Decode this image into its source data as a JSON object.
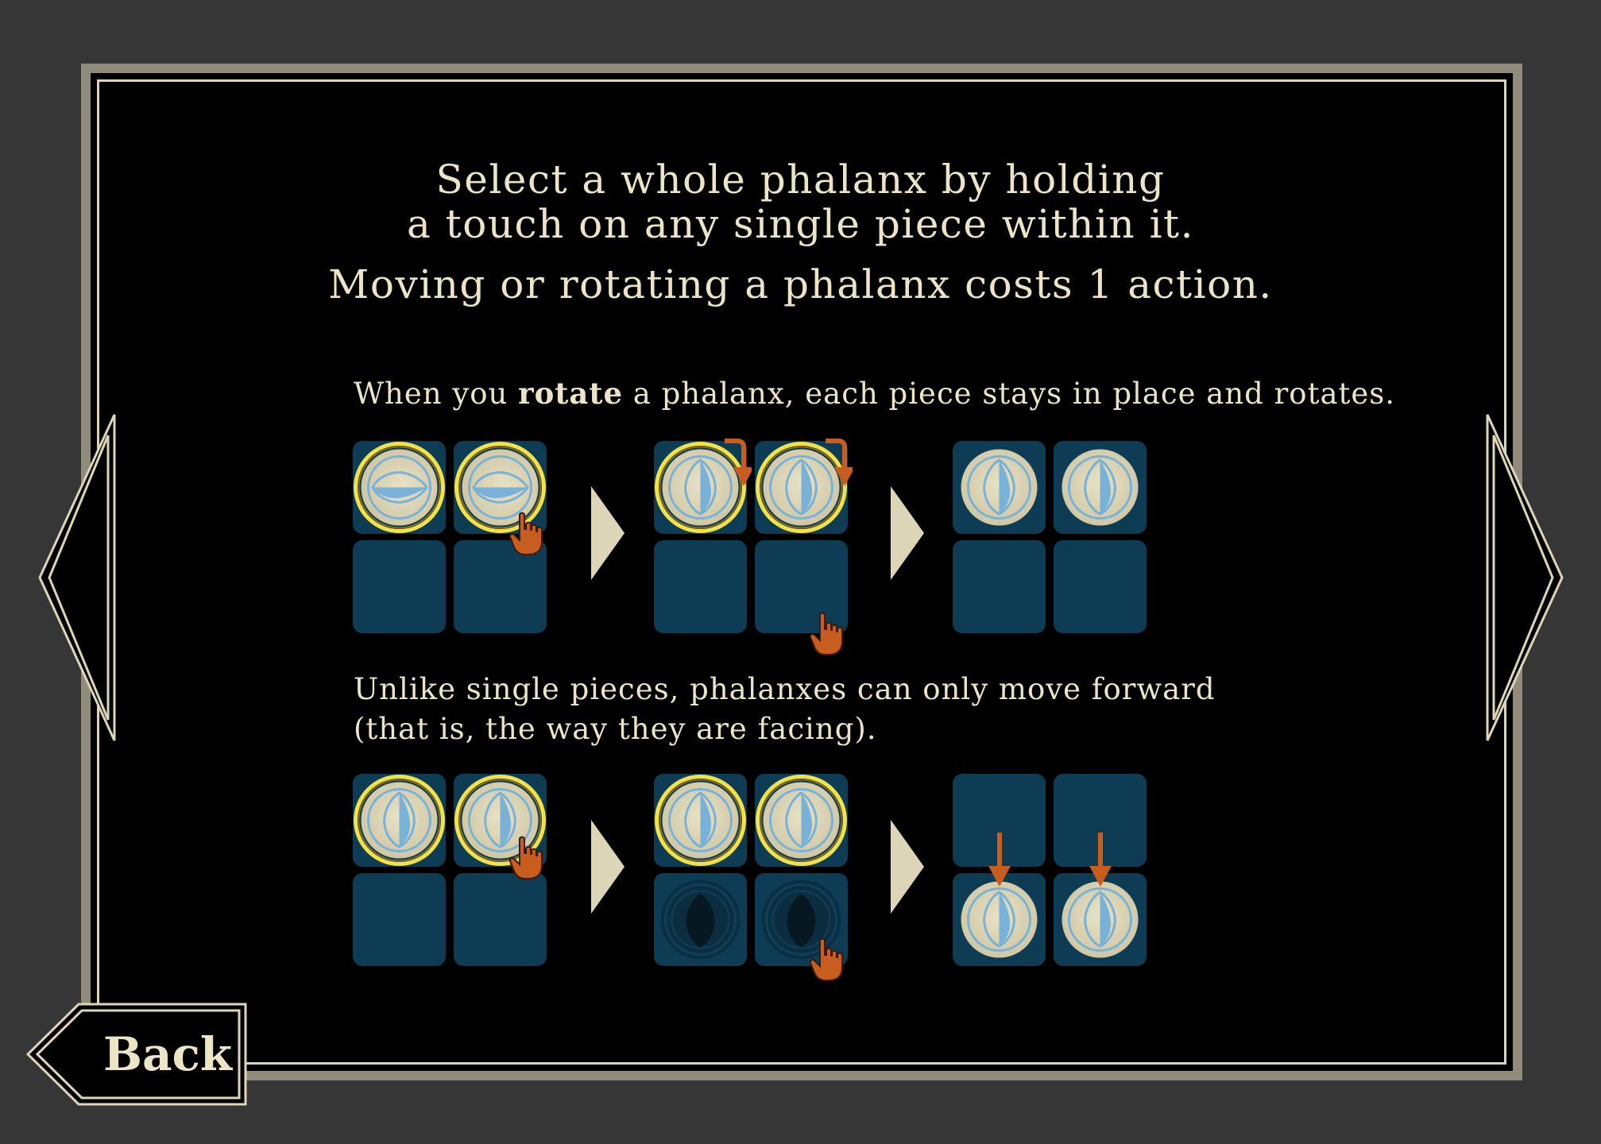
{
  "header": {
    "line1": "Select a whole phalanx by holding",
    "line2": "a touch on any single piece within it.",
    "line3": "Moving or rotating a phalanx costs 1 action."
  },
  "rotate_section": {
    "text_before": "When you ",
    "text_bold": "rotate",
    "text_after": " a phalanx, each piece stays in place and rotates."
  },
  "move_section": {
    "line1": "Unlike single pieces, phalanxes can only move forward",
    "line2": "(that is, the way they are facing)."
  },
  "back_button": {
    "label": "Back"
  },
  "colors": {
    "background": "#363636",
    "frame": "#8f8c7c",
    "cream": "#ece4c6",
    "tile": "#0d3c54",
    "piece_face": "#ddd7b7",
    "piece_blue": "#79b2d9",
    "selection_glow": "#f1e24a",
    "hand_orange": "#c75d1e"
  },
  "icons": {
    "prev": "triangle-left-icon",
    "next": "triangle-right-icon",
    "step": "triangle-step-icon",
    "hand": "pointing-hand-icon",
    "rotate": "rotate-arrow-icon",
    "move": "down-arrow-icon"
  }
}
